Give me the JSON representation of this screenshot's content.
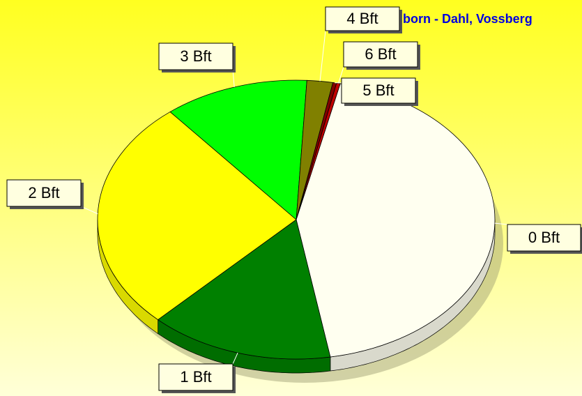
{
  "chart_data": {
    "type": "pie",
    "title": "born - Dahl, Vossberg",
    "categories": [
      "0 Bft",
      "1 Bft",
      "2 Bft",
      "3 Bft",
      "4 Bft",
      "5 Bft",
      "6 Bft"
    ],
    "values": [
      43.7,
      15.0,
      26.8,
      11.8,
      2.1,
      0.3,
      0.3
    ],
    "colors": [
      "#fffff0",
      "#008000",
      "#ffff00",
      "#00ff00",
      "#808000",
      "#800000",
      "#c00000"
    ]
  }
}
